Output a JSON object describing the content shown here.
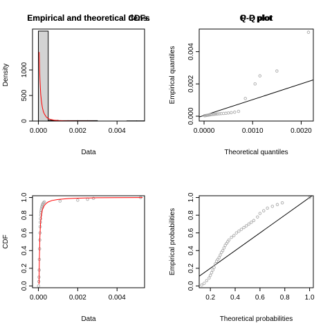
{
  "chart_data": [
    {
      "type": "histogram",
      "title": "Empirical and theoretical dens.",
      "xlabel": "Data",
      "ylabel": "Density",
      "xlim": [
        -0.0003,
        0.0054
      ],
      "ylim": [
        0,
        1800
      ],
      "xticks": [
        "0.000",
        "0.002",
        "0.004"
      ],
      "xtick_values": [
        0,
        0.002,
        0.004
      ],
      "yticks": [
        "0",
        "500",
        "1000"
      ],
      "ytick_values": [
        0,
        500,
        1000
      ],
      "bins": [
        {
          "x0": 0.0,
          "x1": 0.0005,
          "density": 1760
        },
        {
          "x0": 0.0005,
          "x1": 0.001,
          "density": 14
        },
        {
          "x0": 0.001,
          "x1": 0.0015,
          "density": 8
        },
        {
          "x0": 0.0015,
          "x1": 0.002,
          "density": 8
        },
        {
          "x0": 0.002,
          "x1": 0.0025,
          "density": 8
        },
        {
          "x0": 0.0025,
          "x1": 0.003,
          "density": 8
        },
        {
          "x0": 0.0045,
          "x1": 0.005,
          "density": 4
        },
        {
          "x0": 0.005,
          "x1": 0.0055,
          "density": 4
        }
      ],
      "density_curve": {
        "color": "#ff0000",
        "x": [
          4e-05,
          6e-05,
          8e-05,
          0.0001,
          0.00012,
          0.00015,
          0.0002,
          0.00025,
          0.0003,
          0.0004,
          0.0005,
          0.0006,
          0.0008,
          0.001,
          0.0013,
          0.0016,
          0.002,
          0.0025,
          0.003
        ],
        "y": [
          1350,
          1020,
          800,
          640,
          520,
          400,
          270,
          190,
          140,
          80,
          50,
          33,
          17,
          10,
          5,
          3,
          1.5,
          0.8,
          0.4
        ]
      }
    },
    {
      "type": "scatter",
      "title": "Q-Q plot",
      "xlabel": "Theoretical quantiles",
      "ylabel": "Empirical quantiles",
      "xlim": [
        -0.0001,
        0.00225
      ],
      "ylim": [
        -0.0003,
        0.0054
      ],
      "xticks": [
        "0.0000",
        "0.0010",
        "0.0020"
      ],
      "xtick_values": [
        0,
        0.001,
        0.002
      ],
      "yticks": [
        "0.000",
        "0.002",
        "0.004"
      ],
      "ytick_values": [
        0,
        0.002,
        0.004
      ],
      "point_color": "#aaaaaa",
      "x": [
        1e-05,
        3e-05,
        5e-05,
        7e-05,
        9e-05,
        0.00011,
        0.00013,
        0.00015,
        0.00018,
        0.00021,
        0.00024,
        0.00027,
        0.00031,
        0.00035,
        0.0004,
        0.00045,
        0.0005,
        0.00056,
        0.00063,
        0.00071,
        0.00085,
        0.00105,
        0.00115,
        0.0015,
        0.00215
      ],
      "y": [
        3e-05,
        4e-05,
        5e-05,
        6e-05,
        7e-05,
        8e-05,
        9e-05,
        0.0001,
        0.00011,
        0.00012,
        0.00013,
        0.00014,
        0.00015,
        0.00016,
        0.00017,
        0.00018,
        0.0002,
        0.00022,
        0.00025,
        0.0003,
        0.0011,
        0.002,
        0.0025,
        0.0028,
        0.0052
      ],
      "reference_line": {
        "x": [
          -0.0001,
          0.00225
        ],
        "y": [
          -5e-05,
          0.00225
        ]
      }
    },
    {
      "type": "line",
      "title": "Empirical and theoretical CDFs",
      "xlabel": "Data",
      "ylabel": "CDF",
      "xlim": [
        -0.0003,
        0.0054
      ],
      "ylim": [
        -0.02,
        1.02
      ],
      "xticks": [
        "0.000",
        "0.002",
        "0.004"
      ],
      "xtick_values": [
        0,
        0.002,
        0.004
      ],
      "yticks": [
        "0.0",
        "0.2",
        "0.4",
        "0.6",
        "0.8",
        "1.0"
      ],
      "ytick_values": [
        0,
        0.2,
        0.4,
        0.6,
        0.8,
        1.0
      ],
      "empirical_points": {
        "color": "#aaaaaa",
        "x": [
          1e-05,
          2e-05,
          3e-05,
          4e-05,
          5e-05,
          6e-05,
          7e-05,
          8e-05,
          9e-05,
          0.0001,
          0.00011,
          0.00012,
          0.00013,
          0.00014,
          0.00015,
          0.00017,
          0.00019,
          0.00021,
          0.00023,
          0.00026,
          0.0003,
          0.0011,
          0.002,
          0.0025,
          0.0028,
          0.0052
        ],
        "y": [
          0.0,
          0.05,
          0.1,
          0.18,
          0.3,
          0.42,
          0.52,
          0.6,
          0.67,
          0.72,
          0.76,
          0.8,
          0.83,
          0.85,
          0.87,
          0.89,
          0.905,
          0.92,
          0.93,
          0.94,
          0.95,
          0.96,
          0.97,
          0.98,
          0.99,
          1.0
        ]
      },
      "theoretical_curve": {
        "color": "#ff0000",
        "x": [
          3e-05,
          5e-05,
          7e-05,
          0.0001,
          0.00012,
          0.00015,
          0.0002,
          0.0003,
          0.0004,
          0.0005,
          0.0007,
          0.001,
          0.0015,
          0.002,
          0.003,
          0.004,
          0.0053
        ],
        "y": [
          0.02,
          0.3,
          0.52,
          0.68,
          0.74,
          0.8,
          0.86,
          0.91,
          0.935,
          0.95,
          0.967,
          0.978,
          0.988,
          0.993,
          0.997,
          0.999,
          1.0
        ]
      }
    },
    {
      "type": "scatter",
      "title": "P-P plot",
      "xlabel": "Theoretical probabilities",
      "ylabel": "Empirical probabilities",
      "xlim": [
        0.11,
        1.03
      ],
      "ylim": [
        -0.02,
        1.02
      ],
      "xticks": [
        "0.2",
        "0.4",
        "0.6",
        "0.8",
        "1.0"
      ],
      "xtick_values": [
        0.2,
        0.4,
        0.6,
        0.8,
        1.0
      ],
      "yticks": [
        "0.0",
        "0.2",
        "0.4",
        "0.6",
        "0.8",
        "1.0"
      ],
      "ytick_values": [
        0,
        0.2,
        0.4,
        0.6,
        0.8,
        1.0
      ],
      "point_color": "#aaaaaa",
      "x": [
        0.13,
        0.15,
        0.17,
        0.19,
        0.2,
        0.21,
        0.22,
        0.23,
        0.24,
        0.25,
        0.26,
        0.27,
        0.28,
        0.29,
        0.3,
        0.31,
        0.32,
        0.33,
        0.34,
        0.35,
        0.37,
        0.39,
        0.41,
        0.43,
        0.45,
        0.47,
        0.49,
        0.51,
        0.53,
        0.55,
        0.58,
        0.6,
        0.63,
        0.66,
        0.7,
        0.74,
        0.78,
        1.0
      ],
      "y": [
        0.01,
        0.03,
        0.06,
        0.09,
        0.12,
        0.15,
        0.18,
        0.21,
        0.25,
        0.28,
        0.3,
        0.32,
        0.35,
        0.38,
        0.4,
        0.43,
        0.46,
        0.48,
        0.5,
        0.52,
        0.55,
        0.57,
        0.6,
        0.62,
        0.64,
        0.66,
        0.68,
        0.7,
        0.72,
        0.74,
        0.78,
        0.82,
        0.85,
        0.88,
        0.9,
        0.92,
        0.94,
        1.0
      ],
      "reference_line": {
        "x": [
          0.11,
          1.03
        ],
        "y": [
          0.11,
          1.03
        ]
      }
    }
  ]
}
